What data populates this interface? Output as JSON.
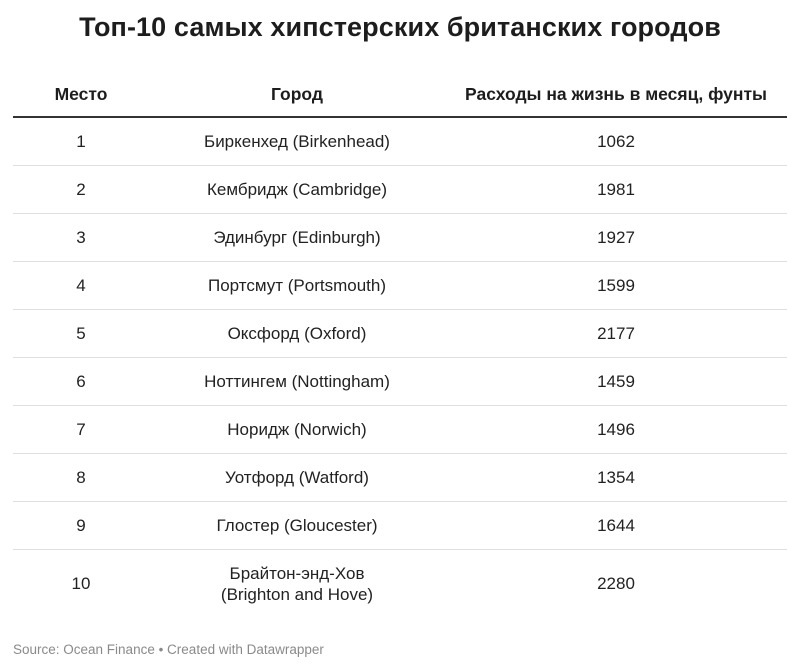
{
  "chart_data": {
    "type": "table",
    "title": "Топ-10 самых хипстерских британских городов",
    "columns": [
      "Место",
      "Город",
      "Расходы на жизнь в месяц, фунты"
    ],
    "rows": [
      {
        "rank": "1",
        "city": "Биркенхед (Birkenhead)",
        "cost": "1062"
      },
      {
        "rank": "2",
        "city": "Кембридж (Cambridge)",
        "cost": "1981"
      },
      {
        "rank": "3",
        "city": "Эдинбург (Edinburgh)",
        "cost": "1927"
      },
      {
        "rank": "4",
        "city": "Портсмут (Portsmouth)",
        "cost": "1599"
      },
      {
        "rank": "5",
        "city": "Оксфорд (Oxford)",
        "cost": "2177"
      },
      {
        "rank": "6",
        "city": "Ноттингем (Nottingham)",
        "cost": "1459"
      },
      {
        "rank": "7",
        "city": "Норидж (Norwich)",
        "cost": "1496"
      },
      {
        "rank": "8",
        "city": "Уотфорд (Watford)",
        "cost": "1354"
      },
      {
        "rank": "9",
        "city": "Глостер (Gloucester)",
        "cost": "1644"
      },
      {
        "rank": "10",
        "city": "Брайтон-энд-Хов\n(Brighton and Hove)",
        "cost": "2280"
      }
    ]
  },
  "footer": {
    "source": "Source: Ocean Finance • Created with Datawrapper"
  }
}
